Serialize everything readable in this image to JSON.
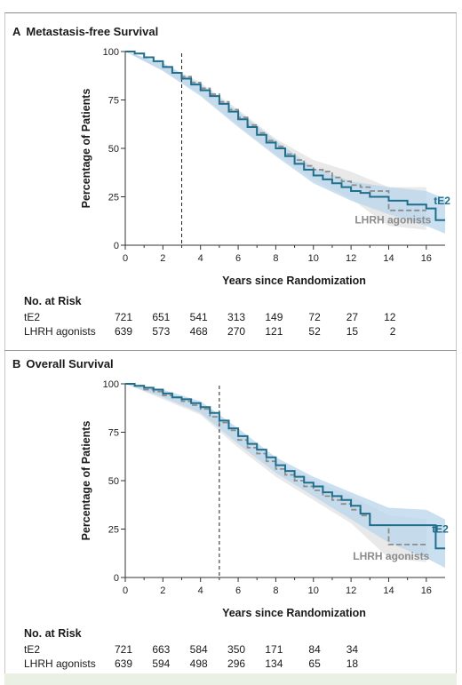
{
  "figure": {
    "panels": [
      {
        "letter": "A",
        "title": "Metastasis-free Survival",
        "risk_title": "No. at Risk",
        "risk_rows": [
          {
            "name": "tE2",
            "values": [
              "721",
              "651",
              "541",
              "313",
              "149",
              "72",
              "27",
              "12"
            ]
          },
          {
            "name": "LHRH agonists",
            "values": [
              "639",
              "573",
              "468",
              "270",
              "121",
              "52",
              "15",
              "2"
            ]
          }
        ]
      },
      {
        "letter": "B",
        "title": "Overall Survival",
        "risk_title": "No. at Risk",
        "risk_rows": [
          {
            "name": "tE2",
            "values": [
              "721",
              "663",
              "584",
              "350",
              "171",
              "84",
              "34"
            ]
          },
          {
            "name": "LHRH agonists",
            "values": [
              "639",
              "594",
              "498",
              "296",
              "134",
              "65",
              "18"
            ]
          }
        ]
      }
    ]
  },
  "chart_data": [
    {
      "type": "line",
      "title": "Metastasis-free Survival",
      "xlabel": "Years since Randomization",
      "ylabel": "Percentage of Patients",
      "xlim": [
        0,
        17
      ],
      "ylim": [
        0,
        100
      ],
      "xticks": [
        0,
        2,
        4,
        6,
        8,
        10,
        12,
        14,
        16
      ],
      "yticks": [
        0,
        25,
        50,
        75,
        100
      ],
      "reference_line_x": 3,
      "series": [
        {
          "name": "tE2",
          "color": "#1f6e8c",
          "style": "solid",
          "x": [
            0,
            0.5,
            1,
            1.5,
            2,
            2.5,
            3,
            3.5,
            4,
            4.5,
            5,
            5.5,
            6,
            6.5,
            7,
            7.5,
            8,
            8.5,
            9,
            9.5,
            10,
            10.5,
            11,
            11.5,
            12,
            12.5,
            13,
            14,
            15,
            16,
            16.5,
            17
          ],
          "y": [
            100,
            99,
            97,
            95,
            92,
            89,
            86,
            83,
            80,
            77,
            73,
            69,
            65,
            61,
            57,
            53,
            50,
            46,
            42,
            39,
            36,
            34,
            32,
            30,
            28,
            27,
            25,
            23,
            21,
            19,
            13,
            13
          ]
        },
        {
          "name": "LHRH agonists",
          "color": "#8c8c8c",
          "style": "dashed",
          "x": [
            0,
            0.5,
            1,
            1.5,
            2,
            2.5,
            3,
            3.5,
            4,
            4.5,
            5,
            5.5,
            6,
            6.5,
            7,
            7.5,
            8,
            8.5,
            9,
            9.5,
            10,
            10.5,
            11,
            11.5,
            12,
            12.5,
            13,
            14,
            15,
            16
          ],
          "y": [
            100,
            99,
            97,
            95,
            92,
            89,
            87,
            84,
            81,
            78,
            74,
            70,
            66,
            62,
            58,
            54,
            51,
            47,
            44,
            41,
            39,
            38,
            35,
            33,
            31,
            30,
            28,
            18,
            18,
            18
          ]
        }
      ],
      "confidence_bands": [
        {
          "series": "tE2",
          "color": "#b8d4ea",
          "x": [
            0,
            2,
            4,
            6,
            8,
            10,
            12,
            14,
            16,
            17
          ],
          "lower": [
            100,
            90,
            77,
            61,
            46,
            32,
            23,
            16,
            10,
            6
          ],
          "upper": [
            100,
            94,
            83,
            69,
            54,
            40,
            33,
            30,
            28,
            24
          ]
        },
        {
          "series": "LHRH agonists",
          "color": "#e1e1e1",
          "x": [
            0,
            2,
            4,
            6,
            8,
            10,
            12,
            14,
            16
          ],
          "lower": [
            100,
            90,
            78,
            62,
            47,
            34,
            24,
            10,
            8
          ],
          "upper": [
            100,
            94,
            84,
            70,
            55,
            44,
            38,
            30,
            30
          ]
        }
      ],
      "series_labels": [
        {
          "text": "tE2",
          "x": 16.4,
          "y": 23,
          "color": "#1f6e8c"
        },
        {
          "text": "LHRH agonists",
          "x": 12.2,
          "y": 13,
          "color": "#8c8c8c"
        }
      ]
    },
    {
      "type": "line",
      "title": "Overall Survival",
      "xlabel": "Years since Randomization",
      "ylabel": "Percentage of Patients",
      "xlim": [
        0,
        17
      ],
      "ylim": [
        0,
        100
      ],
      "xticks": [
        0,
        2,
        4,
        6,
        8,
        10,
        12,
        14,
        16
      ],
      "yticks": [
        0,
        25,
        50,
        75,
        100
      ],
      "reference_line_x": 5,
      "series": [
        {
          "name": "tE2",
          "color": "#1f6e8c",
          "style": "solid",
          "x": [
            0,
            0.5,
            1,
            1.5,
            2,
            2.5,
            3,
            3.5,
            4,
            4.5,
            5,
            5.5,
            6,
            6.5,
            7,
            7.5,
            8,
            8.5,
            9,
            9.5,
            10,
            10.5,
            11,
            11.5,
            12,
            12.5,
            13,
            14,
            15,
            16,
            16.5,
            17
          ],
          "y": [
            100,
            99,
            98,
            97,
            95,
            93,
            92,
            90,
            88,
            85,
            81,
            77,
            73,
            69,
            66,
            62,
            58,
            55,
            52,
            49,
            47,
            44,
            42,
            40,
            37,
            33,
            27,
            27,
            27,
            27,
            15,
            15
          ]
        },
        {
          "name": "LHRH agonists",
          "color": "#8c8c8c",
          "style": "dashed",
          "x": [
            0,
            0.5,
            1,
            1.5,
            2,
            2.5,
            3,
            3.5,
            4,
            4.5,
            5,
            5.5,
            6,
            6.5,
            7,
            7.5,
            8,
            8.5,
            9,
            9.5,
            10,
            10.5,
            11,
            11.5,
            12,
            12.5,
            13,
            14,
            15,
            16
          ],
          "y": [
            100,
            99,
            97,
            96,
            94,
            93,
            91,
            89,
            87,
            83,
            80,
            76,
            71,
            67,
            64,
            60,
            56,
            53,
            50,
            47,
            45,
            42,
            40,
            38,
            35,
            32,
            27,
            17,
            17,
            17
          ]
        }
      ],
      "confidence_bands": [
        {
          "series": "tE2",
          "color": "#b8d4ea",
          "x": [
            0,
            2,
            4,
            6,
            8,
            10,
            12,
            14,
            16,
            17
          ],
          "lower": [
            100,
            93,
            85,
            69,
            54,
            42,
            30,
            18,
            10,
            5
          ],
          "upper": [
            100,
            97,
            91,
            77,
            62,
            52,
            44,
            36,
            35,
            30
          ]
        },
        {
          "series": "LHRH agonists",
          "color": "#e1e1e1",
          "x": [
            0,
            2,
            4,
            6,
            8,
            10,
            12,
            14,
            16
          ],
          "lower": [
            100,
            92,
            84,
            67,
            52,
            40,
            28,
            10,
            8
          ],
          "upper": [
            100,
            96,
            90,
            75,
            60,
            50,
            42,
            32,
            30
          ]
        }
      ],
      "series_labels": [
        {
          "text": "tE2",
          "x": 16.3,
          "y": 25,
          "color": "#1f6e8c"
        },
        {
          "text": "LHRH agonists",
          "x": 12.1,
          "y": 11,
          "color": "#8c8c8c"
        }
      ]
    }
  ]
}
